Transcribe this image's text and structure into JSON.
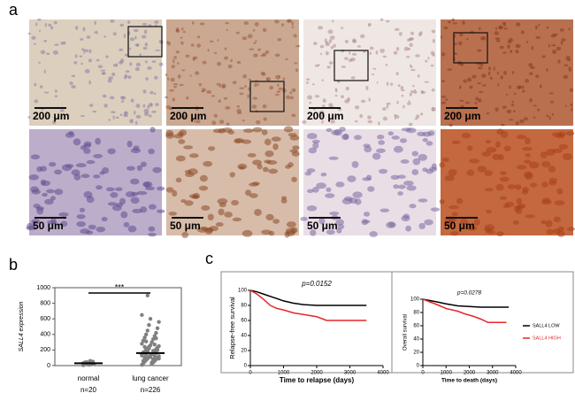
{
  "panel_labels": [
    "a",
    "b",
    "c"
  ],
  "micrographs": {
    "scale_labels": [
      "200 μm",
      "200 μm",
      "200 μm",
      "200 μm",
      "50 μm",
      "50 μm",
      "50 μm",
      "50 μm"
    ]
  },
  "chart_data": [
    {
      "type": "strip",
      "ylabel": "SALL4 expression",
      "categories": [
        "normal",
        "lung cancer"
      ],
      "group_sizes": [
        "n=20",
        "n=226"
      ],
      "significance": "***",
      "ylim": [
        0,
        1000
      ],
      "yticks": [
        0,
        200,
        400,
        600,
        800,
        1000
      ],
      "color": "#808080",
      "mean_color": "#000000",
      "series": [
        {
          "values": [
            5,
            10,
            15,
            20,
            25,
            30,
            35,
            40,
            45,
            50,
            15,
            20,
            25,
            30,
            35,
            10,
            60,
            40,
            30,
            20
          ],
          "mean": 30
        },
        {
          "values": [
            10,
            20,
            30,
            40,
            50,
            60,
            70,
            80,
            90,
            100,
            110,
            120,
            130,
            140,
            150,
            160,
            170,
            180,
            190,
            200,
            210,
            220,
            230,
            240,
            250,
            260,
            280,
            300,
            320,
            340,
            360,
            380,
            400,
            420,
            450,
            480,
            520,
            560,
            600,
            650,
            40,
            60,
            80,
            100,
            120,
            140,
            160,
            180,
            200,
            220,
            90,
            110,
            130,
            150,
            170,
            190,
            240,
            270,
            310,
            350,
            900
          ],
          "mean": 160
        }
      ]
    },
    {
      "type": "line",
      "title": "p=0.0152",
      "xlabel": "Time to relapse (days)",
      "ylabel": "Relapse-free survival",
      "xlim": [
        0,
        4000
      ],
      "xticks": [
        0,
        1000,
        2000,
        3000,
        4000
      ],
      "ylim": [
        0,
        100
      ],
      "yticks": [
        0,
        20,
        40,
        60,
        80,
        100
      ],
      "series": [
        {
          "color": "#000000",
          "x": [
            0,
            200,
            400,
            600,
            800,
            1000,
            1300,
            1600,
            2000,
            2500,
            3000,
            3500
          ],
          "values": [
            100,
            98,
            95,
            92,
            89,
            86,
            83,
            81,
            80,
            80,
            80,
            80
          ]
        },
        {
          "color": "#e8262b",
          "x": [
            0,
            200,
            400,
            600,
            800,
            1000,
            1300,
            1600,
            2000,
            2300,
            2800,
            3500
          ],
          "values": [
            100,
            95,
            88,
            80,
            76,
            74,
            70,
            68,
            65,
            60,
            60,
            60
          ]
        }
      ]
    },
    {
      "type": "line",
      "title": "p=0.0278",
      "xlabel": "Time to death (days)",
      "ylabel": "Overall survival",
      "xlim": [
        0,
        4000
      ],
      "xticks": [
        0,
        1000,
        2000,
        3000,
        4000
      ],
      "ylim": [
        0,
        100
      ],
      "yticks": [
        0,
        20,
        40,
        60,
        80,
        100
      ],
      "legend": "right",
      "series": [
        {
          "name": "SALL4 LOW",
          "color": "#000000",
          "x": [
            0,
            300,
            600,
            1000,
            1500,
            2000,
            2500,
            3000,
            3700
          ],
          "values": [
            100,
            98,
            96,
            93,
            90,
            89,
            88,
            88,
            88
          ]
        },
        {
          "name": "SALL4 HIGH",
          "color": "#e8262b",
          "x": [
            0,
            300,
            600,
            1000,
            1500,
            1800,
            2200,
            2500,
            2800,
            3600
          ],
          "values": [
            100,
            96,
            92,
            86,
            82,
            78,
            74,
            70,
            65,
            65
          ]
        }
      ]
    }
  ]
}
